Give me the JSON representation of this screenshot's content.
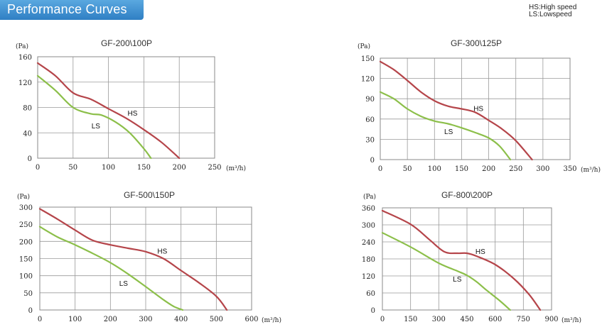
{
  "header": {
    "title": "Performance Curves"
  },
  "legend": {
    "hs": "HS:High speed",
    "ls": "LS:Lowspeed"
  },
  "colors": {
    "hs": "#b5454a",
    "ls": "#8cbf4a",
    "tab": "#3d8fd0"
  },
  "chart_data": [
    {
      "type": "line",
      "title": "GF-200\\100P",
      "ylabel": "(Pa)",
      "xlabel": "(m³/h)",
      "xticks": [
        0,
        50,
        100,
        150,
        200,
        250
      ],
      "yticks": [
        0,
        40,
        80,
        120,
        160
      ],
      "xlim": [
        0,
        250
      ],
      "ylim": [
        0,
        160
      ],
      "grid": true,
      "series": [
        {
          "name": "HS",
          "x": [
            0,
            25,
            50,
            75,
            100,
            125,
            150,
            175,
            200
          ],
          "y": [
            150,
            130,
            103,
            93,
            78,
            63,
            45,
            25,
            0
          ]
        },
        {
          "name": "LS",
          "x": [
            0,
            25,
            50,
            75,
            90,
            110,
            130,
            150,
            160
          ],
          "y": [
            130,
            107,
            80,
            70,
            68,
            57,
            40,
            15,
            0
          ]
        }
      ],
      "annotations": [
        {
          "text": "HS",
          "x": 127,
          "y": 67
        },
        {
          "text": "LS",
          "x": 76,
          "y": 47
        }
      ]
    },
    {
      "type": "line",
      "title": "GF-300\\125P",
      "ylabel": "(Pa)",
      "xlabel": "(m³/h)",
      "xticks": [
        0,
        50,
        100,
        150,
        200,
        250,
        300,
        350
      ],
      "yticks": [
        0,
        30,
        60,
        90,
        120,
        150
      ],
      "xlim": [
        0,
        350
      ],
      "ylim": [
        0,
        150
      ],
      "grid": true,
      "series": [
        {
          "name": "HS",
          "x": [
            0,
            25,
            50,
            75,
            100,
            125,
            150,
            175,
            200,
            225,
            250,
            280
          ],
          "y": [
            145,
            133,
            117,
            100,
            87,
            79,
            75,
            70,
            58,
            45,
            28,
            0
          ]
        },
        {
          "name": "LS",
          "x": [
            0,
            25,
            50,
            75,
            100,
            125,
            150,
            175,
            200,
            220,
            240
          ],
          "y": [
            100,
            90,
            75,
            64,
            57,
            53,
            47,
            40,
            32,
            20,
            0
          ]
        }
      ],
      "annotations": [
        {
          "text": "HS",
          "x": 172,
          "y": 72
        },
        {
          "text": "LS",
          "x": 118,
          "y": 38
        }
      ]
    },
    {
      "type": "line",
      "title": "GF-500\\150P",
      "ylabel": "(Pa)",
      "xlabel": "(m³/h)",
      "xticks": [
        0,
        100,
        200,
        300,
        400,
        500,
        600
      ],
      "yticks": [
        0,
        50,
        100,
        150,
        200,
        250,
        300
      ],
      "xlim": [
        0,
        600
      ],
      "ylim": [
        0,
        300
      ],
      "grid": true,
      "series": [
        {
          "name": "HS",
          "x": [
            0,
            50,
            100,
            150,
            200,
            250,
            300,
            350,
            400,
            450,
            500,
            530
          ],
          "y": [
            295,
            265,
            233,
            203,
            190,
            180,
            170,
            150,
            115,
            80,
            40,
            0
          ]
        },
        {
          "name": "LS",
          "x": [
            0,
            50,
            100,
            150,
            200,
            250,
            300,
            350,
            380,
            405
          ],
          "y": [
            243,
            213,
            190,
            165,
            138,
            105,
            68,
            30,
            10,
            0
          ]
        }
      ],
      "annotations": [
        {
          "text": "HS",
          "x": 333,
          "y": 165
        },
        {
          "text": "LS",
          "x": 225,
          "y": 70
        }
      ]
    },
    {
      "type": "line",
      "title": "GF-800\\200P",
      "ylabel": "(Pa)",
      "xlabel": "(m³/h)",
      "xticks": [
        0,
        150,
        300,
        450,
        600,
        750,
        900
      ],
      "yticks": [
        0,
        60,
        120,
        180,
        240,
        300,
        360
      ],
      "xlim": [
        0,
        900
      ],
      "ylim": [
        0,
        360
      ],
      "grid": true,
      "series": [
        {
          "name": "HS",
          "x": [
            0,
            150,
            250,
            330,
            400,
            450,
            500,
            600,
            700,
            780,
            840
          ],
          "y": [
            350,
            302,
            248,
            205,
            200,
            200,
            190,
            160,
            110,
            55,
            0
          ]
        },
        {
          "name": "LS",
          "x": [
            0,
            150,
            300,
            400,
            450,
            500,
            550,
            620,
            680
          ],
          "y": [
            272,
            222,
            165,
            137,
            122,
            100,
            72,
            35,
            0
          ]
        }
      ],
      "annotations": [
        {
          "text": "HS",
          "x": 495,
          "y": 198
        },
        {
          "text": "LS",
          "x": 375,
          "y": 100
        }
      ]
    }
  ]
}
